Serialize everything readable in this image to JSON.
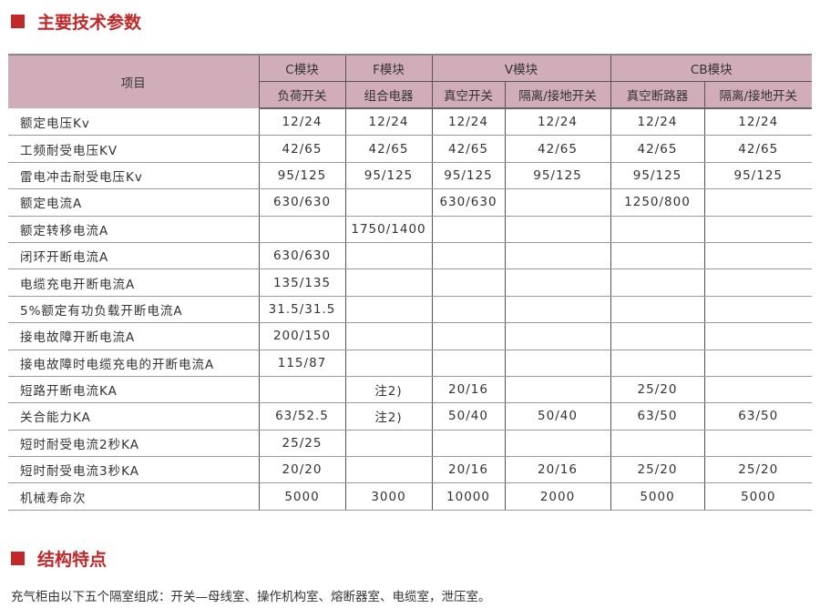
{
  "section1": "主要技术参数",
  "section2": "结构特点",
  "header": {
    "item": "项目",
    "groups": [
      "C模块",
      "F模块",
      "V模块",
      "CB模块"
    ],
    "subs": [
      "负荷开关",
      "组合电器",
      "真空开关",
      "隔离/接地开关",
      "真空断路器",
      "隔离/接地开关"
    ]
  },
  "rows": [
    [
      "额定电压Kv",
      "12/24",
      "12/24",
      "12/24",
      "12/24",
      "12/24",
      "12/24"
    ],
    [
      "工频耐受电压KV",
      "42/65",
      "42/65",
      "42/65",
      "42/65",
      "42/65",
      "42/65"
    ],
    [
      "雷电冲击耐受电压Kv",
      "95/125",
      "95/125",
      "95/125",
      "95/125",
      "95/125",
      "95/125"
    ],
    [
      "额定电流A",
      "630/630",
      "",
      "630/630",
      "",
      "1250/800",
      ""
    ],
    [
      "额定转移电流A",
      "",
      "1750/1400",
      "",
      "",
      "",
      ""
    ],
    [
      "闭环开断电流A",
      "630/630",
      "",
      "",
      "",
      "",
      ""
    ],
    [
      "电缆充电开断电流A",
      "135/135",
      "",
      "",
      "",
      "",
      ""
    ],
    [
      "5%额定有功负载开断电流A",
      "31.5/31.5",
      "",
      "",
      "",
      "",
      ""
    ],
    [
      "接电故障开断电流A",
      "200/150",
      "",
      "",
      "",
      "",
      ""
    ],
    [
      "接电故障时电缆充电的开断电流A",
      "115/87",
      "",
      "",
      "",
      "",
      ""
    ],
    [
      "短路开断电流KA",
      "",
      "注2)",
      "20/16",
      "",
      "25/20",
      ""
    ],
    [
      "关合能力KA",
      "63/52.5",
      "注2)",
      "50/40",
      "50/40",
      "63/50",
      "63/50"
    ],
    [
      "短时耐受电流2秒KA",
      "25/25",
      "",
      "",
      "",
      "",
      ""
    ],
    [
      "短时耐受电流3秒KA",
      "20/20",
      "",
      "20/16",
      "20/16",
      "25/20",
      "25/20"
    ],
    [
      "机械寿命次",
      "5000",
      "3000",
      "10000",
      "2000",
      "5000",
      "5000"
    ]
  ],
  "description": "充气柜由以下五个隔室组成：开关—母线室、操作机构室、熔断器室、电缆室，泄压室。"
}
